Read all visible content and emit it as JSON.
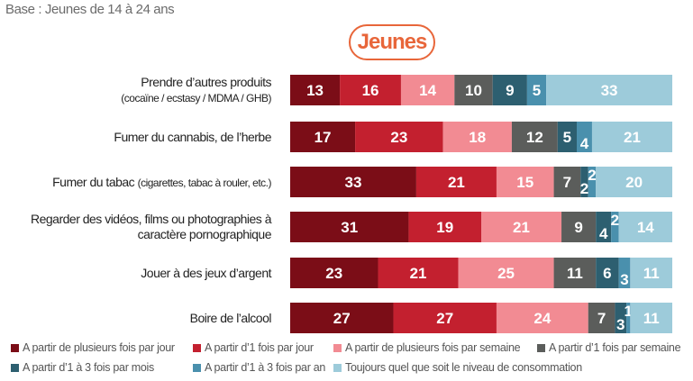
{
  "header": {
    "base": "Base : Jeunes de 14 à 24 ans",
    "badge": "Jeunes"
  },
  "chart_data": {
    "type": "bar",
    "orientation": "horizontal",
    "stacked": true,
    "xlim": [
      0,
      100
    ],
    "categories": [
      {
        "label": "Prendre d’autres produits",
        "sublabel": "(cocaïne / ecstasy / MDMA / GHB)",
        "sub_inline": false
      },
      {
        "label": "Fumer du cannabis, de l’herbe",
        "sublabel": "",
        "sub_inline": false
      },
      {
        "label": "Fumer du tabac",
        "sublabel": "(cigarettes, tabac à rouler, etc.)",
        "sub_inline": true
      },
      {
        "label": "Regarder des vidéos, films ou photographies à",
        "sublabel": "caractère pornographique",
        "sub_inline": false,
        "sub_same_size": true
      },
      {
        "label": "Jouer à des jeux d’argent",
        "sublabel": "",
        "sub_inline": false
      },
      {
        "label": "Boire de l’alcool",
        "sublabel": "",
        "sub_inline": false
      }
    ],
    "series": [
      {
        "name": "A partir de plusieurs fois par jour",
        "color": "#7b0d17",
        "values": [
          13,
          17,
          33,
          31,
          23,
          27
        ]
      },
      {
        "name": "A partir d’1 fois par jour",
        "color": "#c3202f",
        "values": [
          16,
          23,
          21,
          19,
          21,
          27
        ]
      },
      {
        "name": "A partir de plusieurs fois par semaine",
        "color": "#f28b93",
        "values": [
          14,
          18,
          15,
          21,
          25,
          24
        ]
      },
      {
        "name": "A partir d’1 fois par semaine",
        "color": "#5b5d5b",
        "values": [
          10,
          12,
          7,
          9,
          11,
          7
        ]
      },
      {
        "name": "A partir d’1 à 3 fois par mois",
        "color": "#2d5f70",
        "values": [
          9,
          5,
          2,
          4,
          6,
          3
        ]
      },
      {
        "name": "A partir d’1 à 3 fois par an",
        "color": "#4a90ad",
        "values": [
          5,
          4,
          2,
          2,
          3,
          1
        ]
      },
      {
        "name": "Toujours quel que soit le niveau de consommation",
        "color": "#9dcbda",
        "values": [
          33,
          21,
          20,
          14,
          11,
          11
        ]
      }
    ],
    "legend": "bottom"
  }
}
